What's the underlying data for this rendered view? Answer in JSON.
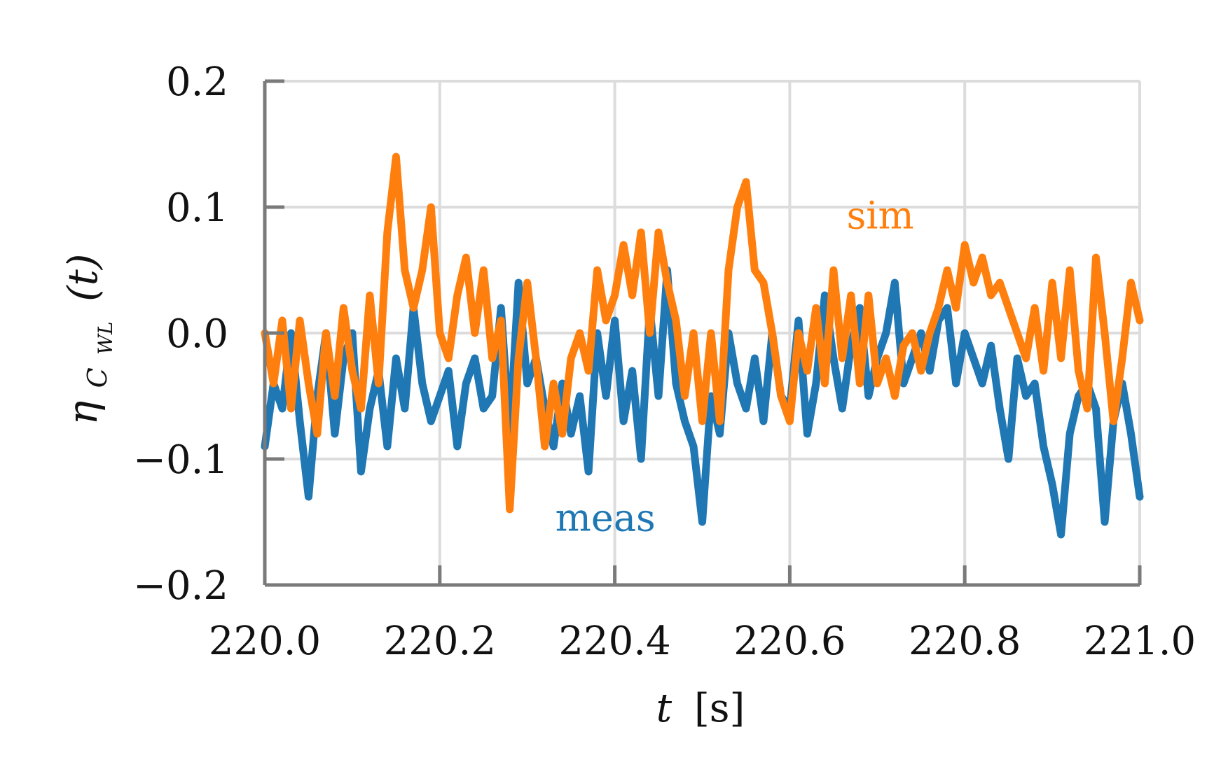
{
  "chart_data": {
    "type": "line",
    "title": "",
    "xlabel": {
      "symbol": "t",
      "unit": "[s]"
    },
    "ylabel": {
      "symbol": "η",
      "subscript": "C",
      "subsubscript": "WL",
      "argument": "(t)"
    },
    "xlim": [
      220.0,
      221.0
    ],
    "ylim": [
      -0.2,
      0.2
    ],
    "xticks": [
      220.0,
      220.2,
      220.4,
      220.6,
      220.8,
      221.0
    ],
    "xtick_labels": [
      "220.0",
      "220.2",
      "220.4",
      "220.6",
      "220.8",
      "221.0"
    ],
    "yticks": [
      -0.2,
      -0.1,
      0.0,
      0.1,
      0.2
    ],
    "ytick_labels": [
      "−0.2",
      "−0.1",
      "0.0",
      "0.1",
      "0.2"
    ],
    "grid": true,
    "series": [
      {
        "name": "meas",
        "color": "#1f77b4",
        "x": [
          220.0,
          220.01,
          220.02,
          220.03,
          220.04,
          220.05,
          220.06,
          220.07,
          220.08,
          220.09,
          220.1,
          220.11,
          220.12,
          220.13,
          220.14,
          220.15,
          220.16,
          220.17,
          220.18,
          220.19,
          220.2,
          220.21,
          220.22,
          220.23,
          220.24,
          220.25,
          220.26,
          220.27,
          220.28,
          220.29,
          220.3,
          220.31,
          220.32,
          220.33,
          220.34,
          220.35,
          220.36,
          220.37,
          220.38,
          220.39,
          220.4,
          220.41,
          220.42,
          220.43,
          220.44,
          220.45,
          220.46,
          220.47,
          220.48,
          220.49,
          220.5,
          220.51,
          220.52,
          220.53,
          220.54,
          220.55,
          220.56,
          220.57,
          220.58,
          220.59,
          220.6,
          220.61,
          220.62,
          220.63,
          220.64,
          220.65,
          220.66,
          220.67,
          220.68,
          220.69,
          220.7,
          220.71,
          220.72,
          220.73,
          220.74,
          220.75,
          220.76,
          220.77,
          220.78,
          220.79,
          220.8,
          220.81,
          220.82,
          220.83,
          220.84,
          220.85,
          220.86,
          220.87,
          220.88,
          220.89,
          220.9,
          220.91,
          220.92,
          220.93,
          220.94,
          220.95,
          220.96,
          220.97,
          220.98,
          220.99,
          221.0
        ],
        "y": [
          -0.09,
          -0.04,
          -0.06,
          0.0,
          -0.07,
          -0.13,
          -0.05,
          0.0,
          -0.08,
          -0.02,
          0.0,
          -0.11,
          -0.06,
          -0.03,
          -0.09,
          -0.02,
          -0.06,
          0.02,
          -0.04,
          -0.07,
          -0.05,
          -0.03,
          -0.09,
          -0.04,
          -0.02,
          -0.06,
          -0.05,
          0.02,
          -0.08,
          0.04,
          -0.04,
          -0.02,
          -0.06,
          -0.09,
          -0.04,
          -0.08,
          -0.05,
          -0.11,
          0.0,
          -0.05,
          0.01,
          -0.07,
          -0.03,
          -0.1,
          0.02,
          -0.05,
          0.05,
          -0.04,
          -0.07,
          -0.09,
          -0.15,
          -0.05,
          -0.08,
          0.0,
          -0.04,
          -0.06,
          -0.02,
          -0.07,
          0.0,
          -0.05,
          -0.06,
          0.01,
          -0.08,
          -0.04,
          0.03,
          -0.02,
          -0.06,
          -0.01,
          0.02,
          -0.05,
          -0.02,
          0.0,
          0.04,
          -0.04,
          -0.02,
          0.0,
          -0.03,
          0.01,
          0.02,
          -0.04,
          0.0,
          -0.02,
          -0.04,
          -0.01,
          -0.06,
          -0.1,
          -0.02,
          -0.05,
          -0.04,
          -0.09,
          -0.12,
          -0.16,
          -0.08,
          -0.05,
          -0.04,
          -0.06,
          -0.15,
          -0.07,
          -0.04,
          -0.08,
          -0.13
        ]
      },
      {
        "name": "sim",
        "color": "#ff7f0e",
        "x": [
          220.0,
          220.01,
          220.02,
          220.03,
          220.04,
          220.05,
          220.06,
          220.07,
          220.08,
          220.09,
          220.1,
          220.11,
          220.12,
          220.13,
          220.14,
          220.15,
          220.16,
          220.17,
          220.18,
          220.19,
          220.2,
          220.21,
          220.22,
          220.23,
          220.24,
          220.25,
          220.26,
          220.27,
          220.28,
          220.29,
          220.3,
          220.31,
          220.32,
          220.33,
          220.34,
          220.35,
          220.36,
          220.37,
          220.38,
          220.39,
          220.4,
          220.41,
          220.42,
          220.43,
          220.44,
          220.45,
          220.46,
          220.47,
          220.48,
          220.49,
          220.5,
          220.51,
          220.52,
          220.53,
          220.54,
          220.55,
          220.56,
          220.57,
          220.58,
          220.59,
          220.6,
          220.61,
          220.62,
          220.63,
          220.64,
          220.65,
          220.66,
          220.67,
          220.68,
          220.69,
          220.7,
          220.71,
          220.72,
          220.73,
          220.74,
          220.75,
          220.76,
          220.77,
          220.78,
          220.79,
          220.8,
          220.81,
          220.82,
          220.83,
          220.84,
          220.85,
          220.86,
          220.87,
          220.88,
          220.89,
          220.9,
          220.91,
          220.92,
          220.93,
          220.94,
          220.95,
          220.96,
          220.97,
          220.98,
          220.99,
          221.0
        ],
        "y": [
          0.0,
          -0.04,
          0.01,
          -0.06,
          0.01,
          -0.04,
          -0.08,
          0.0,
          -0.05,
          0.02,
          -0.03,
          -0.06,
          0.03,
          -0.04,
          0.08,
          0.14,
          0.05,
          0.02,
          0.05,
          0.1,
          0.0,
          -0.02,
          0.03,
          0.06,
          0.0,
          0.05,
          -0.02,
          0.01,
          -0.14,
          -0.02,
          0.04,
          -0.02,
          -0.09,
          -0.04,
          -0.08,
          -0.02,
          0.0,
          -0.03,
          0.05,
          0.01,
          0.03,
          0.07,
          0.03,
          0.08,
          0.0,
          0.08,
          0.04,
          0.01,
          -0.05,
          0.0,
          -0.07,
          0.0,
          -0.07,
          0.05,
          0.1,
          0.12,
          0.05,
          0.04,
          0.0,
          -0.05,
          -0.07,
          0.0,
          -0.03,
          0.02,
          -0.04,
          0.05,
          -0.02,
          0.03,
          -0.04,
          0.03,
          -0.04,
          -0.02,
          -0.05,
          -0.01,
          0.0,
          -0.03,
          0.0,
          0.02,
          0.05,
          0.02,
          0.07,
          0.04,
          0.06,
          0.03,
          0.04,
          0.02,
          0.0,
          -0.02,
          0.02,
          -0.03,
          0.04,
          -0.02,
          0.05,
          -0.03,
          -0.06,
          0.06,
          0.0,
          -0.07,
          -0.02,
          0.04,
          0.01
        ]
      }
    ],
    "series_labels": [
      {
        "text": "sim",
        "series": "sim",
        "x": 220.665,
        "y": 0.083
      },
      {
        "text": "meas",
        "series": "meas",
        "x": 220.332,
        "y": -0.157
      }
    ]
  }
}
